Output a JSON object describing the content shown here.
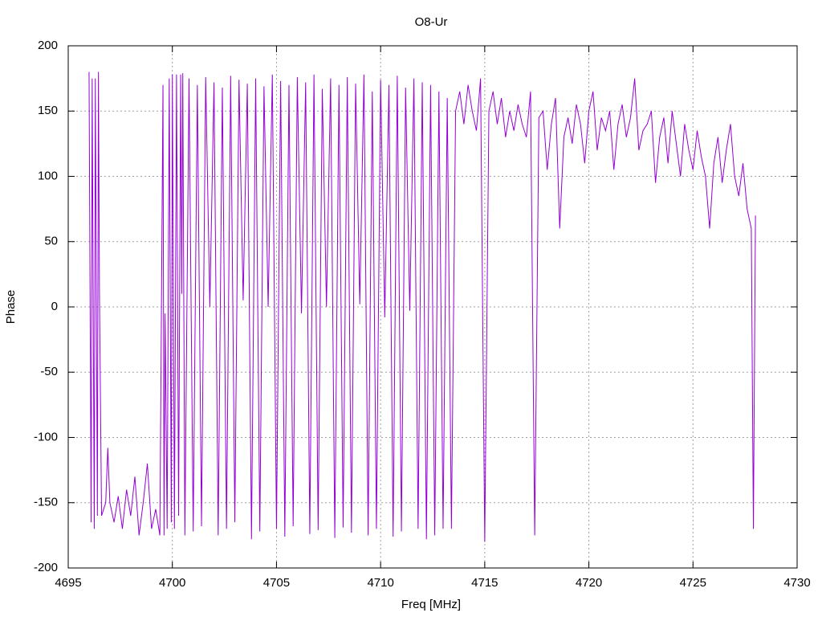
{
  "chart_data": {
    "type": "line",
    "title": "O8-Ur",
    "x_label": "Freq [MHz]",
    "y_label": "Phase",
    "color": "#9400d3",
    "grid": true,
    "xlim": [
      4695,
      4730
    ],
    "xticks": [
      4695,
      4700,
      4705,
      4710,
      4715,
      4720,
      4725,
      4730
    ],
    "ylim": [
      -200,
      200
    ],
    "yticks": [
      -200,
      -150,
      -100,
      -50,
      0,
      50,
      100,
      150,
      200
    ],
    "x": [
      4696.0,
      4696.05,
      4696.1,
      4696.15,
      4696.2,
      4696.25,
      4696.3,
      4696.4,
      4696.45,
      4696.5,
      4696.6,
      4696.8,
      4696.9,
      4697.0,
      4697.2,
      4697.4,
      4697.6,
      4697.8,
      4698.0,
      4698.2,
      4698.4,
      4698.6,
      4698.8,
      4699.0,
      4699.2,
      4699.4,
      4699.55,
      4699.6,
      4699.65,
      4699.75,
      4699.85,
      4699.95,
      4700.0,
      4700.1,
      4700.2,
      4700.3,
      4700.4,
      4700.45,
      4700.5,
      4700.6,
      4700.8,
      4701.0,
      4701.2,
      4701.4,
      4701.6,
      4701.8,
      4702.0,
      4702.2,
      4702.4,
      4702.6,
      4702.8,
      4703.0,
      4703.2,
      4703.4,
      4703.6,
      4703.8,
      4704.0,
      4704.2,
      4704.4,
      4704.6,
      4704.8,
      4705.0,
      4705.2,
      4705.4,
      4705.6,
      4705.8,
      4706.0,
      4706.2,
      4706.4,
      4706.6,
      4706.8,
      4707.0,
      4707.2,
      4707.4,
      4707.6,
      4707.8,
      4708.0,
      4708.2,
      4708.4,
      4708.6,
      4708.8,
      4709.0,
      4709.2,
      4709.4,
      4709.6,
      4709.8,
      4710.0,
      4710.2,
      4710.4,
      4710.6,
      4710.8,
      4711.0,
      4711.2,
      4711.4,
      4711.6,
      4711.8,
      4712.0,
      4712.2,
      4712.4,
      4712.6,
      4712.8,
      4713.0,
      4713.2,
      4713.4,
      4713.6,
      4713.8,
      4714.0,
      4714.2,
      4714.4,
      4714.6,
      4714.8,
      4715.0,
      4715.2,
      4715.4,
      4715.6,
      4715.8,
      4716.0,
      4716.2,
      4716.4,
      4716.6,
      4716.8,
      4717.0,
      4717.2,
      4717.4,
      4717.6,
      4717.8,
      4718.0,
      4718.2,
      4718.4,
      4718.6,
      4718.8,
      4719.0,
      4719.2,
      4719.4,
      4719.6,
      4719.8,
      4720.0,
      4720.2,
      4720.4,
      4720.6,
      4720.8,
      4721.0,
      4721.2,
      4721.4,
      4721.6,
      4721.8,
      4722.0,
      4722.2,
      4722.4,
      4722.6,
      4722.8,
      4723.0,
      4723.2,
      4723.4,
      4723.6,
      4723.8,
      4724.0,
      4724.2,
      4724.4,
      4724.6,
      4724.8,
      4725.0,
      4725.2,
      4725.4,
      4725.6,
      4725.8,
      4726.0,
      4726.2,
      4726.4,
      4726.6,
      4726.8,
      4727.0,
      4727.2,
      4727.4,
      4727.6,
      4727.8,
      4727.9,
      4728.0
    ],
    "values": [
      180,
      5,
      -165,
      175,
      0,
      -170,
      175,
      -160,
      180,
      10,
      -160,
      -150,
      -108,
      -150,
      -165,
      -145,
      -170,
      -140,
      -160,
      -130,
      -175,
      -150,
      -120,
      -170,
      -155,
      -175,
      170,
      -175,
      -5,
      -170,
      175,
      -165,
      178,
      -170,
      178,
      -160,
      178,
      10,
      179,
      -175,
      175,
      -172,
      170,
      -168,
      176,
      0,
      172,
      -175,
      168,
      -170,
      177,
      -165,
      174,
      5,
      171,
      -178,
      175,
      -172,
      169,
      0,
      178,
      -170,
      173,
      -176,
      170,
      -168,
      176,
      -5,
      172,
      -174,
      178,
      -171,
      167,
      0,
      175,
      -177,
      170,
      -169,
      176,
      -173,
      171,
      2,
      178,
      -175,
      165,
      -170,
      174,
      -8,
      170,
      -176,
      177,
      -172,
      168,
      -3,
      175,
      -170,
      172,
      -178,
      170,
      -175,
      165,
      -170,
      160,
      -170,
      150,
      165,
      140,
      170,
      150,
      135,
      175,
      -180,
      150,
      165,
      140,
      160,
      130,
      150,
      135,
      155,
      140,
      130,
      165,
      -175,
      145,
      150,
      105,
      140,
      160,
      60,
      130,
      145,
      125,
      155,
      140,
      110,
      150,
      165,
      120,
      145,
      135,
      150,
      105,
      140,
      155,
      130,
      145,
      175,
      120,
      135,
      140,
      150,
      95,
      130,
      145,
      110,
      150,
      125,
      100,
      140,
      120,
      105,
      135,
      115,
      100,
      60,
      110,
      130,
      95,
      120,
      140,
      100,
      85,
      110,
      75,
      60,
      -170,
      70
    ]
  }
}
